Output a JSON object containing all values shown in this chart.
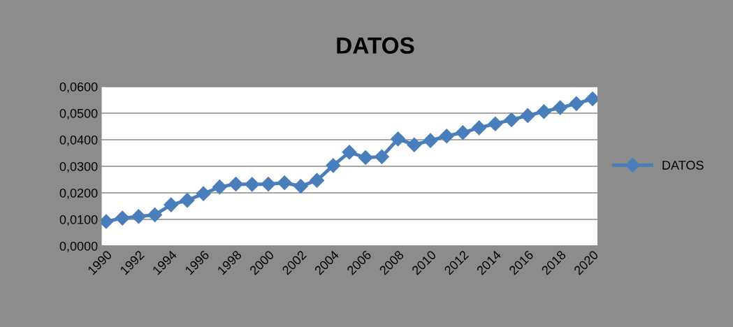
{
  "chart_data": {
    "type": "line",
    "title": "DATOS",
    "categories": [
      "1990",
      null,
      "1992",
      null,
      "1994",
      null,
      "1996",
      null,
      "1998",
      null,
      "2000",
      null,
      "2002",
      null,
      "2004",
      null,
      "2006",
      null,
      "2008",
      null,
      "2010",
      null,
      "2012",
      null,
      "2014",
      null,
      "2016",
      null,
      "2018",
      null,
      "2020"
    ],
    "series": [
      {
        "name": "DATOS",
        "color": "#4a7ebb",
        "values": [
          0.0092,
          0.0105,
          0.0111,
          0.0117,
          0.0155,
          0.0172,
          0.0197,
          0.0222,
          0.0233,
          0.0232,
          0.0233,
          0.0238,
          0.0225,
          0.0247,
          0.0303,
          0.0353,
          0.0333,
          0.0336,
          0.0403,
          0.0381,
          0.0397,
          0.0414,
          0.0427,
          0.0445,
          0.046,
          0.0475,
          0.0491,
          0.0506,
          0.0521,
          0.0536,
          0.0554
        ]
      }
    ],
    "ylim": [
      0,
      0.06
    ],
    "yticks": [
      {
        "value": 0,
        "label": "0,0000"
      },
      {
        "value": 0.01,
        "label": "0,0100"
      },
      {
        "value": 0.02,
        "label": "0,0200"
      },
      {
        "value": 0.03,
        "label": "0,0300"
      },
      {
        "value": 0.04,
        "label": "0,0400"
      },
      {
        "value": 0.05,
        "label": "0,0500"
      },
      {
        "value": 0.06,
        "label": "0,0600"
      }
    ],
    "grid": "y",
    "legend": "right",
    "marker": "diamond",
    "line_style": "solid"
  }
}
